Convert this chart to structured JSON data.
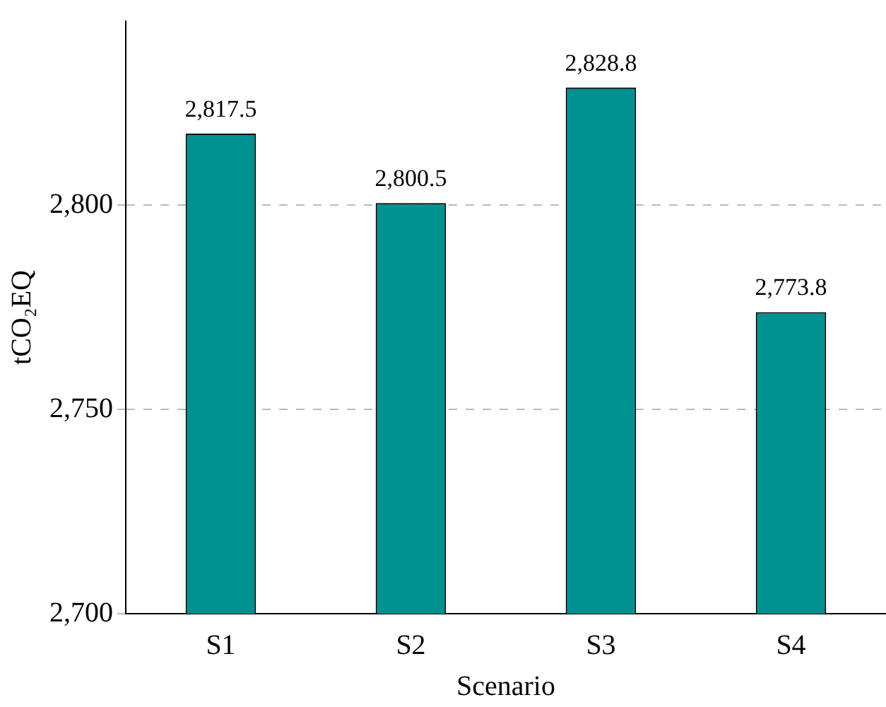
{
  "chart_data": {
    "type": "bar",
    "xlabel": "Scenario",
    "ylabel": "tCO₂EQ",
    "categories": [
      "S1",
      "S2",
      "S3",
      "S4"
    ],
    "values": [
      2817.5,
      2800.5,
      2828.8,
      2773.8
    ],
    "value_labels": [
      "2,817.5",
      "2,800.5",
      "2,828.8",
      "2,773.8"
    ],
    "color": "#009191",
    "ylim": [
      2700,
      2845
    ],
    "yticks": [
      {
        "value": 2700,
        "label": "2,700"
      },
      {
        "value": 2750,
        "label": "2,750"
      },
      {
        "value": 2800,
        "label": "2,800"
      }
    ],
    "grid": "y",
    "legend": false
  }
}
